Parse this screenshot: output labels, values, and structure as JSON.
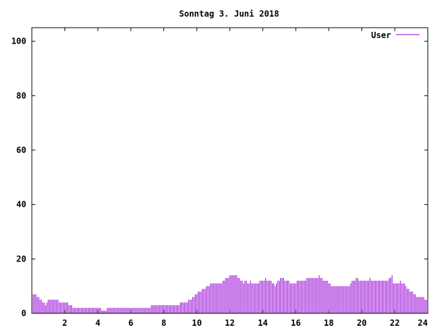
{
  "chart_data": {
    "type": "bar",
    "title": "Sonntag 3. Juni 2018",
    "xlabel": "",
    "ylabel": "",
    "xlim": [
      0,
      24
    ],
    "ylim": [
      0,
      105
    ],
    "x_ticks": [
      2,
      4,
      6,
      8,
      10,
      12,
      14,
      16,
      18,
      20,
      22,
      24
    ],
    "x_tick_labels": [
      "2",
      "4",
      "6",
      "8",
      "10",
      "12",
      "14",
      "16",
      "18",
      "20",
      "22",
      "24"
    ],
    "y_ticks": [
      0,
      20,
      40,
      60,
      80,
      100
    ],
    "y_tick_labels": [
      "0",
      "20",
      "40",
      "60",
      "80",
      "100"
    ],
    "grid": false,
    "legend_position": "top-right",
    "series_color": "#9400d3",
    "series": [
      {
        "name": "User",
        "start_hour": 0,
        "step_minutes": 5,
        "values": [
          7,
          7,
          7,
          7,
          6,
          6,
          5,
          5,
          4,
          4,
          3,
          4,
          5,
          5,
          5,
          5,
          5,
          5,
          5,
          5,
          4,
          4,
          4,
          4,
          4,
          4,
          4,
          3,
          3,
          3,
          2,
          2,
          2,
          2,
          2,
          2,
          2,
          2,
          2,
          2,
          2,
          2,
          2,
          2,
          2,
          2,
          2,
          2,
          2,
          2,
          2,
          1,
          1,
          1,
          1,
          2,
          2,
          2,
          2,
          2,
          2,
          2,
          2,
          2,
          2,
          2,
          2,
          2,
          2,
          2,
          2,
          2,
          2,
          2,
          2,
          2,
          2,
          2,
          2,
          2,
          2,
          2,
          2,
          2,
          2,
          2,
          2,
          3,
          3,
          3,
          3,
          3,
          3,
          3,
          3,
          3,
          3,
          3,
          3,
          3,
          3,
          3,
          3,
          3,
          3,
          3,
          3,
          3,
          4,
          4,
          4,
          4,
          4,
          4,
          5,
          5,
          5,
          6,
          6,
          7,
          7,
          8,
          8,
          8,
          9,
          9,
          9,
          10,
          10,
          10,
          11,
          11,
          11,
          11,
          11,
          11,
          11,
          11,
          11,
          12,
          12,
          13,
          13,
          13,
          14,
          14,
          14,
          14,
          14,
          14,
          13,
          13,
          12,
          12,
          11,
          12,
          12,
          11,
          11,
          12,
          11,
          11,
          11,
          11,
          11,
          11,
          12,
          12,
          12,
          12,
          13,
          12,
          12,
          12,
          12,
          11,
          11,
          10,
          11,
          12,
          12,
          13,
          13,
          13,
          12,
          12,
          12,
          12,
          11,
          11,
          11,
          11,
          11,
          12,
          12,
          12,
          12,
          12,
          12,
          12,
          13,
          13,
          13,
          13,
          13,
          13,
          13,
          13,
          13,
          14,
          13,
          13,
          12,
          12,
          12,
          12,
          11,
          11,
          10,
          10,
          10,
          10,
          10,
          10,
          10,
          10,
          10,
          10,
          10,
          10,
          10,
          10,
          11,
          12,
          12,
          12,
          13,
          13,
          12,
          12,
          12,
          12,
          12,
          12,
          12,
          12,
          13,
          12,
          12,
          12,
          12,
          12,
          12,
          12,
          12,
          12,
          12,
          12,
          12,
          12,
          13,
          13,
          14,
          11,
          11,
          11,
          11,
          11,
          12,
          11,
          11,
          11,
          10,
          9,
          9,
          8,
          8,
          8,
          7,
          7,
          6,
          6,
          6,
          6,
          6,
          6,
          5,
          5,
          5
        ]
      }
    ]
  }
}
